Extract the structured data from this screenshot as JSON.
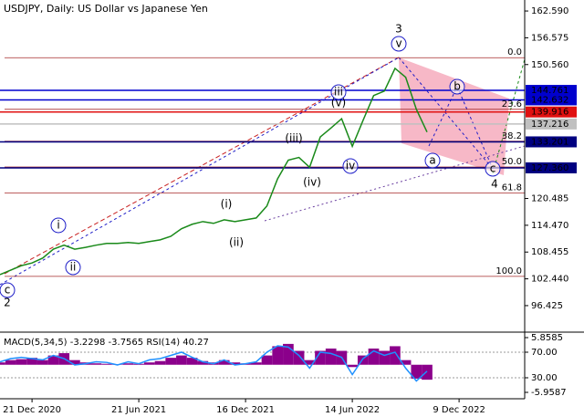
{
  "chart_data": [
    {
      "type": "line",
      "title": "USDJPY, Daily:  US Dollar vs Japanese Yen",
      "categories": [
        null,
        null,
        null,
        "21 Dec 2020",
        null,
        null,
        null,
        null,
        null,
        null,
        null,
        null,
        null,
        "21 Jun 2021",
        null,
        null,
        null,
        null,
        null,
        null,
        null,
        null,
        null,
        "16 Dec 2021",
        null,
        null,
        null,
        null,
        null,
        null,
        null,
        null,
        null,
        "14 Jun 2022",
        null,
        null,
        null,
        null,
        null,
        null,
        null,
        null,
        null,
        "9 Dec 2022",
        null,
        null,
        null,
        null,
        null,
        null
      ],
      "series": [
        {
          "color": "#1a8a1a",
          "values": [
            103.4,
            104.4,
            105.4,
            106.0,
            107.1,
            109.1,
            110.0,
            109.1,
            109.5,
            110.0,
            110.4,
            110.4,
            110.6,
            110.4,
            110.8,
            111.2,
            112.0,
            113.7,
            114.7,
            115.3,
            114.9,
            115.7,
            115.3,
            115.7,
            116.1,
            118.8,
            124.9,
            129.1,
            129.7,
            127.5,
            134.3,
            136.3,
            138.4,
            132.2,
            138.0,
            143.6,
            144.6,
            149.7,
            147.7,
            140.5,
            135.4,
            null,
            null,
            null,
            null,
            null,
            null,
            null,
            null,
            null
          ]
        }
      ],
      "ylim": [
        90.47,
        165.06
      ],
      "yticks": [
        {
          "value": 162.59,
          "label": "162.590"
        },
        {
          "value": 156.575,
          "label": "156.575"
        },
        {
          "value": 150.56,
          "label": "150.560"
        },
        {
          "value": 120.485,
          "label": "120.485"
        },
        {
          "value": 114.47,
          "label": "114.470"
        },
        {
          "value": 108.455,
          "label": "108.455"
        },
        {
          "value": 102.44,
          "label": "102.440"
        },
        {
          "value": 96.425,
          "label": "96.425"
        }
      ],
      "levels": [
        {
          "value": 144.761,
          "label": "144.761",
          "color": "#0000cd"
        },
        {
          "value": 142.632,
          "label": "142.632",
          "color": "#0000cd"
        },
        {
          "value": 139.916,
          "label": "139.916",
          "color": "#e01010"
        },
        {
          "value": 137.216,
          "label": "137.216",
          "color": "#c0c0c0"
        },
        {
          "value": 133.201,
          "label": "133.201",
          "color": "#000080"
        },
        {
          "value": 127.36,
          "label": "127.360",
          "color": "#000080"
        }
      ],
      "fib_range": [
        152.1,
        102.99
      ],
      "fib_levels": [
        {
          "value": 0,
          "label": "0.0"
        },
        {
          "value": 23.6,
          "label": "23.6"
        },
        {
          "value": 38.2,
          "label": "38.2"
        },
        {
          "value": 50,
          "label": "50.0"
        },
        {
          "value": 61.8,
          "label": "61.8"
        },
        {
          "value": 100,
          "label": "100.0"
        }
      ],
      "annotations": [
        {
          "text": "3",
          "color": "#b5532f"
        },
        {
          "text": "v",
          "color": "#1e1ec8",
          "circle": true
        },
        {
          "text": "iii",
          "color": "#1e1ec8",
          "circle": true
        },
        {
          "text": "(v)",
          "color": "#c81e1e"
        },
        {
          "text": "(iii)",
          "color": "#c81e1e"
        },
        {
          "text": "(iv)",
          "color": "#c81e1e"
        },
        {
          "text": "iv",
          "color": "#1e1ec8",
          "circle": true
        },
        {
          "text": "(i)",
          "color": "#c81e1e"
        },
        {
          "text": "(ii)",
          "color": "#c81e1e"
        },
        {
          "text": "i",
          "color": "#1e1ec8",
          "circle": true
        },
        {
          "text": "ii",
          "color": "#1e1ec8",
          "circle": true
        },
        {
          "text": "c",
          "color": "#1e1ec8",
          "circle": true
        },
        {
          "text": "2",
          "color": "#b5532f"
        },
        {
          "text": "a",
          "color": "#1e1ec8",
          "circle": true
        },
        {
          "text": "b",
          "color": "#1e1ec8",
          "circle": true
        },
        {
          "text": "c",
          "color": "#1e1ec8",
          "circle": true
        },
        {
          "text": "4",
          "color": "#b5532f"
        }
      ]
    },
    {
      "type": "macd",
      "title": "MACD(5,34,5) -3.2298 -3.7565 RSI(14) 40.27",
      "series": [
        {
          "color": "#8b008b",
          "values": [
            0.5,
            1,
            1.2,
            1.5,
            1,
            2,
            2.5,
            1,
            0.5,
            0.3,
            0.2,
            0.1,
            0.3,
            0.2,
            0.5,
            0.8,
            1.5,
            2,
            1.5,
            0.8,
            0.5,
            1,
            0.5,
            0.3,
            0.5,
            2,
            4,
            4.5,
            3,
            1,
            3,
            3.5,
            3,
            -0.5,
            2,
            3.5,
            3,
            4,
            1,
            -3,
            -3.2298
          ]
        },
        {
          "color": "#1e90ff",
          "axis": "y2",
          "values": [
            55,
            60,
            62,
            60,
            58,
            65,
            60,
            50,
            52,
            55,
            54,
            50,
            55,
            52,
            58,
            60,
            65,
            70,
            62,
            55,
            52,
            58,
            50,
            52,
            55,
            70,
            80,
            78,
            65,
            45,
            70,
            68,
            62,
            35,
            60,
            72,
            65,
            70,
            45,
            25,
            40.27
          ]
        }
      ],
      "ylim": [
        -7.34,
        7.04
      ],
      "yticks": [
        5.8585,
        -5.9587
      ],
      "y2lim": [
        -2.86,
        101.4
      ],
      "y2ticks": [
        {
          "value": 70,
          "label": "70.00"
        },
        {
          "value": 30,
          "label": "30.00"
        }
      ]
    }
  ]
}
